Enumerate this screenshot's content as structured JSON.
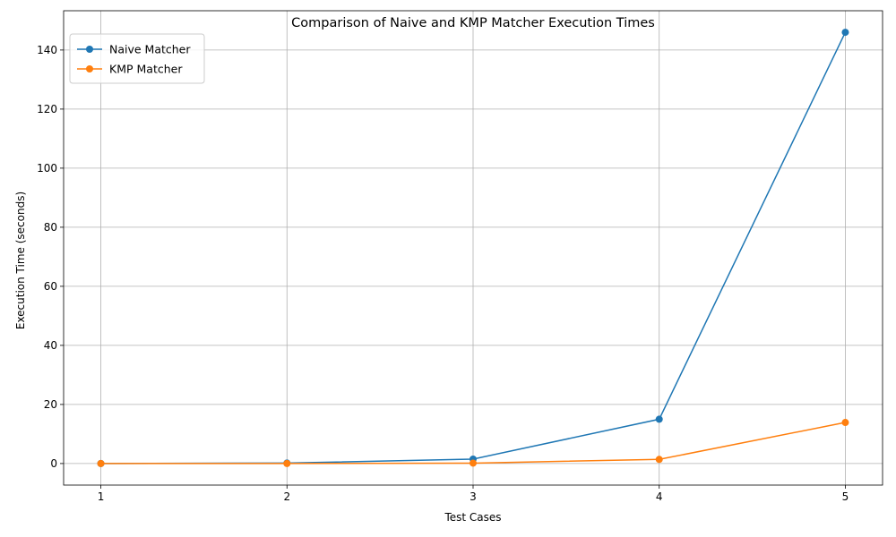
{
  "chart_data": {
    "type": "line",
    "title": "Comparison of Naive and KMP Matcher Execution Times",
    "xlabel": "Test Cases",
    "ylabel": "Execution Time (seconds)",
    "x": [
      1,
      2,
      3,
      4,
      5
    ],
    "x_tick_labels": [
      "1",
      "2",
      "3",
      "4",
      "5"
    ],
    "ylim": [
      -7.3,
      153.3
    ],
    "y_ticks": [
      0,
      20,
      40,
      60,
      80,
      100,
      120,
      140
    ],
    "y_tick_labels": [
      "0",
      "20",
      "40",
      "60",
      "80",
      "100",
      "120",
      "140"
    ],
    "grid": true,
    "legend_position": "top-left",
    "series": [
      {
        "name": "Naive Matcher",
        "color": "#1f77b4",
        "values": [
          0.01,
          0.15,
          1.5,
          15.0,
          146.0
        ]
      },
      {
        "name": "KMP Matcher",
        "color": "#ff7f0e",
        "values": [
          0.0,
          0.01,
          0.14,
          1.4,
          13.9
        ]
      }
    ]
  }
}
